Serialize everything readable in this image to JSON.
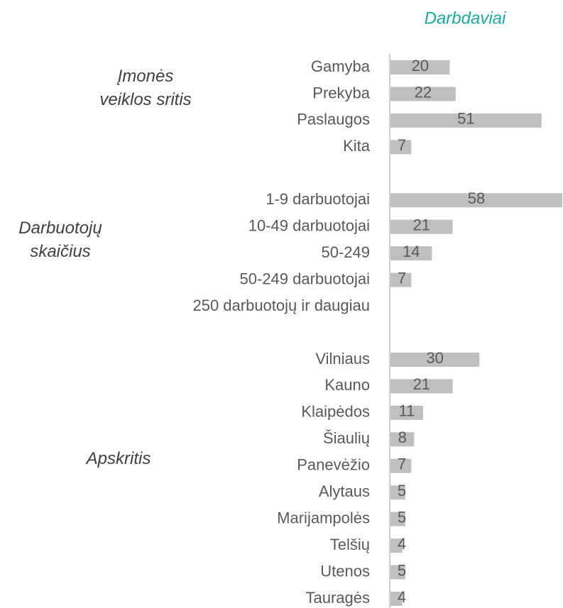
{
  "chart_data": {
    "type": "bar",
    "title": "Darbdaviai",
    "color": "#bfbfbf",
    "groups": [
      {
        "label": [
          "Įmonės",
          "veiklos sritis"
        ],
        "categories": [
          "Gamyba",
          "Prekyba",
          "Paslaugos",
          "Kita"
        ],
        "values": [
          20,
          22,
          51,
          7
        ]
      },
      {
        "label": [
          "Darbuotojų",
          "skaičius"
        ],
        "categories": [
          "1-9 darbuotojai",
          "10-49 darbuotojai",
          "50-249",
          "50-249 darbuotojai",
          "250 darbuotojų ir daugiau"
        ],
        "values": [
          58,
          21,
          14,
          7,
          null
        ]
      },
      {
        "label": [
          "Apskritis"
        ],
        "categories": [
          "Vilniaus",
          "Kauno",
          "Klaipėdos",
          "Šiaulių",
          "Panevėžio",
          "Alytaus",
          "Marijampolės",
          "Telšių",
          "Utenos",
          "Tauragės"
        ],
        "values": [
          30,
          21,
          11,
          8,
          7,
          5,
          5,
          4,
          5,
          4
        ]
      }
    ]
  }
}
